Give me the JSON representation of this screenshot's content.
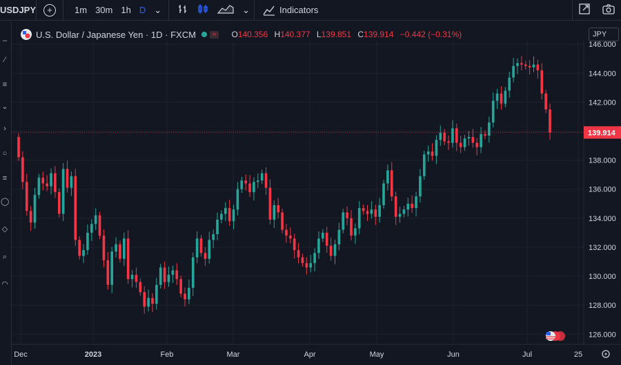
{
  "toolbar": {
    "symbol": "USDJPY",
    "intervals": [
      "1m",
      "30m",
      "1h",
      "D"
    ],
    "active_interval": "D",
    "indicators_label": "Indicators"
  },
  "legend": {
    "title": "U.S. Dollar / Japanese Yen · 1D · FXCM",
    "o_label": "O",
    "o_value": "140.356",
    "h_label": "H",
    "h_value": "140.377",
    "l_label": "L",
    "l_value": "139.851",
    "c_label": "C",
    "c_value": "139.914",
    "change": "−0.442 (−0.31%)"
  },
  "currency": "JPY",
  "colors": {
    "up": "#26a69a",
    "down": "#f23645",
    "background": "#131722",
    "text": "#d1d4dc"
  },
  "chart_data": {
    "type": "candlestick",
    "symbol": "USDJPY",
    "interval": "1D",
    "source": "FXCM",
    "ylim": [
      125.3,
      146.2
    ],
    "y_ticks": [
      "126.000",
      "128.000",
      "130.000",
      "132.000",
      "134.000",
      "136.000",
      "138.000",
      "140.000",
      "142.000",
      "144.000",
      "146.000"
    ],
    "x_tick_labels": [
      "Dec",
      "2023",
      "Feb",
      "Mar",
      "Apr",
      "May",
      "Jun",
      "Jul",
      "25"
    ],
    "last_price": "139.914",
    "close_series": [
      138.2,
      136.5,
      134.5,
      133.7,
      135.6,
      136.8,
      136.4,
      136.2,
      137.1,
      135.8,
      134.3,
      137.4,
      136.1,
      136.9,
      132.5,
      131.4,
      131.8,
      133.0,
      133.6,
      134.2,
      132.8,
      131.1,
      129.4,
      131.7,
      132.2,
      131.2,
      132.6,
      129.8,
      130.1,
      129.6,
      128.9,
      127.9,
      128.5,
      128.1,
      129.4,
      130.6,
      129.6,
      130.1,
      130.4,
      129.8,
      128.8,
      128.4,
      129.2,
      131.3,
      132.6,
      131.6,
      131.2,
      132.5,
      132.9,
      133.9,
      134.3,
      134.7,
      133.8,
      134.6,
      136.0,
      136.6,
      136.4,
      135.8,
      136.5,
      136.6,
      137.1,
      136.1,
      133.9,
      134.9,
      134.4,
      133.2,
      132.8,
      132.6,
      131.8,
      131.3,
      130.9,
      130.6,
      130.9,
      131.6,
      132.6,
      133.0,
      132.1,
      131.4,
      132.2,
      133.2,
      134.4,
      134.0,
      132.8,
      133.3,
      134.7,
      134.5,
      134.3,
      134.6,
      134.1,
      134.9,
      136.4,
      137.3,
      135.5,
      134.1,
      134.3,
      134.6,
      135.0,
      134.7,
      135.5,
      136.9,
      138.4,
      138.6,
      138.3,
      139.4,
      139.9,
      139.3,
      139.2,
      140.2,
      139.2,
      138.9,
      139.5,
      139.6,
      139.2,
      138.9,
      139.8,
      139.7,
      140.6,
      142.1,
      142.6,
      141.9,
      142.8,
      143.7,
      144.5,
      144.7,
      144.6,
      144.5,
      144.4,
      144.6,
      144.2,
      142.6,
      141.5,
      139.9
    ]
  }
}
